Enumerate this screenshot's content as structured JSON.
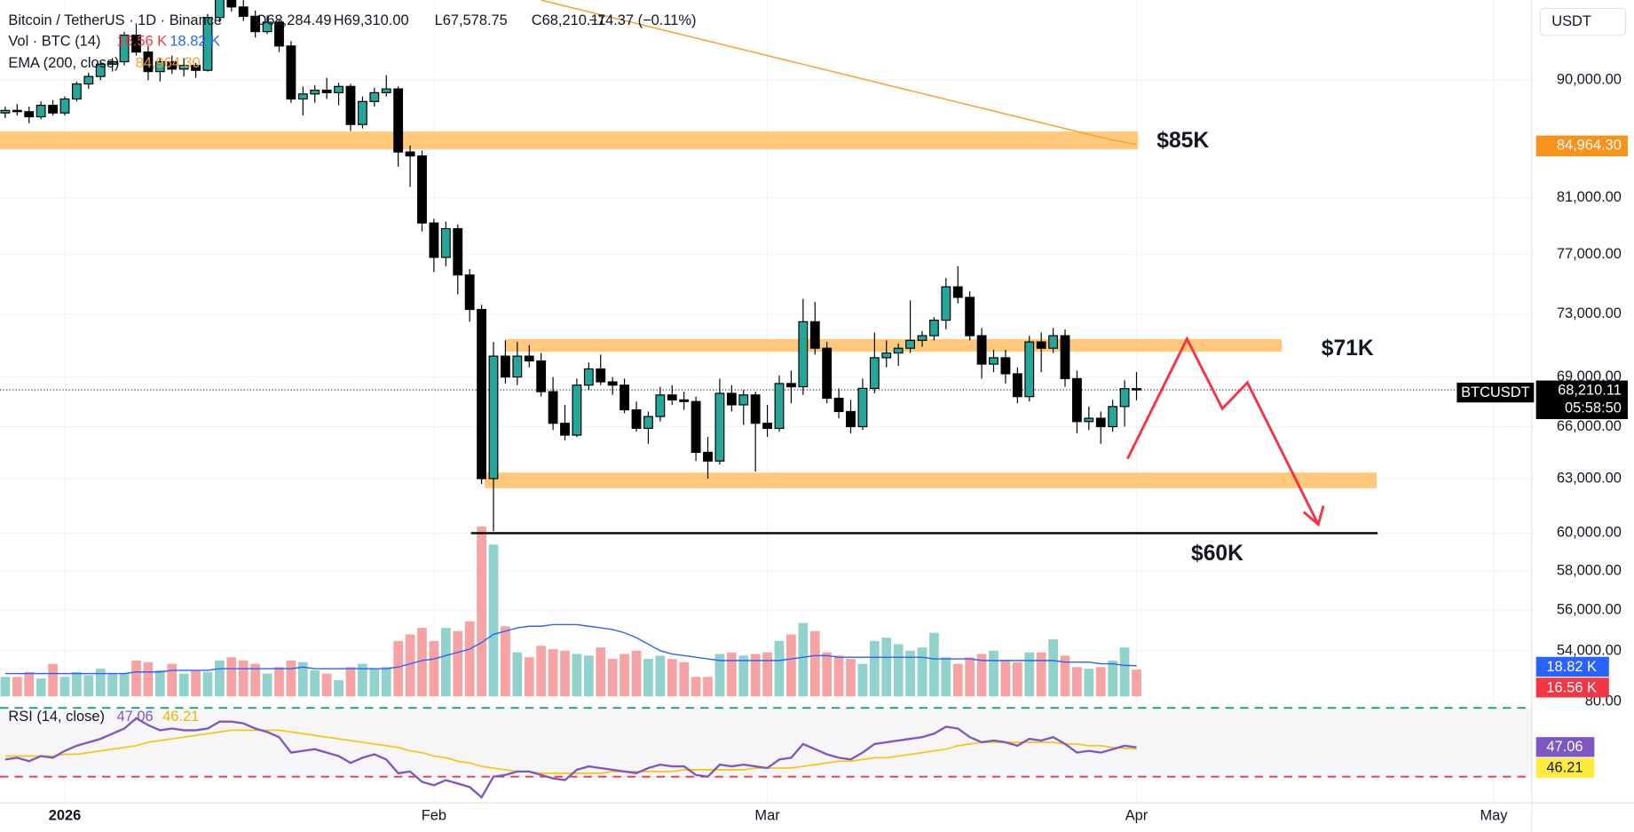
{
  "chart_data": {
    "type": "candlestick",
    "legend": {
      "symbol": "Bitcoin / TetherUS · 1D · Binance",
      "open": "O68,284.49",
      "high": "H69,310.00",
      "low": "L67,578.75",
      "close": "C68,210.11",
      "change": "−74.37 (−0.11%)",
      "volume": "Vol · BTC (14)",
      "volume_last": "16.56 K",
      "volume_ma_last": "18.82 K",
      "ema": "EMA (200, close)",
      "ema_last": "84,964.30",
      "rsi": "RSI (14, close)",
      "rsi_last": "47.06",
      "rsi_ma_last": "46.21"
    },
    "currency": "USDT",
    "ticker": "BTCUSDT",
    "last_price": "68,210.11",
    "countdown": "05:58:50",
    "rsi_axis_label": "80.00",
    "log_scale": true,
    "grid": true,
    "up_color": "#26a69a",
    "down_color": "#000000",
    "volume_up_color": "#92d2cc",
    "volume_down_color": "#f7a3a3",
    "ema_color": "#f7a234",
    "volume_ma_color": "#2962ff",
    "rsi_color": "#7e57c2",
    "rsi_ma_color": "#f5c518",
    "zone_color": "#ffc87a",
    "support_color": "#000000",
    "ylim": [
      51500,
      96700
    ],
    "yticks": [
      {
        "value": 90000,
        "label": "90,000.00"
      },
      {
        "value": 81000,
        "label": "81,000.00"
      },
      {
        "value": 77000,
        "label": "77,000.00"
      },
      {
        "value": 73000,
        "label": "73,000.00"
      },
      {
        "value": 69000,
        "label": "69,000.00"
      },
      {
        "value": 66000,
        "label": "66,000.00"
      },
      {
        "value": 63000,
        "label": "63,000.00"
      },
      {
        "value": 60000,
        "label": "60,000.00"
      },
      {
        "value": 58000,
        "label": "58,000.00"
      },
      {
        "value": 56000,
        "label": "56,000.00"
      },
      {
        "value": 54000,
        "label": "54,000.00"
      }
    ],
    "xlim": [
      -0.44,
      128.2
    ],
    "xticks": [
      {
        "value": 5,
        "label": "2026"
      },
      {
        "value": 36,
        "label": "Feb"
      },
      {
        "value": 64,
        "label": "Mar"
      },
      {
        "value": 95,
        "label": "Apr"
      },
      {
        "value": 125,
        "label": "May"
      }
    ],
    "volume_ylim": [
      0,
      120000
    ],
    "rsi_ylim": [
      14.8,
      72.4
    ],
    "rsi_levels": [
      70,
      30
    ],
    "open": [
      87400,
      87600,
      87500,
      87100,
      88000,
      87400,
      88500,
      89700,
      90300,
      91300,
      91500,
      93700,
      92300,
      90700,
      91500,
      90900,
      91200,
      90800,
      95200,
      96800,
      96100,
      95300,
      94000,
      94800,
      92800,
      88500,
      88900,
      89200,
      89000,
      89500,
      86500,
      88300,
      89000,
      89300,
      84400,
      84100,
      79200,
      76800,
      78800,
      75600,
      73300,
      63000,
      70300,
      69000,
      70300,
      70000,
      68100,
      66200,
      65500,
      68500,
      69500,
      68700,
      68500,
      67000,
      65900,
      66600,
      67900,
      67600,
      67500,
      64500,
      64000,
      68000,
      67300,
      67900,
      66200,
      65900,
      68600,
      68400,
      72500,
      70800,
      67700,
      66900,
      66000,
      68300,
      70200,
      70500,
      70800,
      71300,
      71600,
      72600,
      74800,
      74100,
      71600,
      69800,
      70200,
      69200,
      67800,
      71200,
      70800,
      71600,
      68900,
      66300,
      66500,
      66000,
      67200,
      68284.49
    ],
    "high": [
      87900,
      88100,
      87900,
      88300,
      88400,
      88700,
      89900,
      90600,
      91600,
      91800,
      94000,
      94700,
      92800,
      91800,
      92000,
      91800,
      91400,
      95500,
      97500,
      97800,
      97000,
      95800,
      95400,
      95000,
      93200,
      89500,
      89600,
      90200,
      89800,
      89700,
      88700,
      89400,
      90400,
      89500,
      84900,
      84500,
      79500,
      79300,
      79100,
      76000,
      73600,
      71200,
      71300,
      71200,
      71000,
      70500,
      69000,
      67300,
      68900,
      69900,
      70400,
      69000,
      68900,
      67500,
      66900,
      68400,
      68500,
      68100,
      67800,
      65400,
      68900,
      68500,
      68200,
      68100,
      67300,
      69100,
      69400,
      74000,
      73800,
      71200,
      68300,
      67600,
      68900,
      71800,
      71300,
      71100,
      73900,
      71900,
      72800,
      75400,
      76200,
      74500,
      72100,
      70700,
      70700,
      69600,
      71600,
      71800,
      72100,
      72000,
      69400,
      67200,
      66900,
      67600,
      68800,
      69310
    ],
    "low": [
      87000,
      87200,
      86600,
      86900,
      87200,
      87200,
      88300,
      89300,
      90000,
      90700,
      91200,
      92000,
      90000,
      89900,
      90500,
      90300,
      90200,
      90700,
      94800,
      95700,
      94900,
      93500,
      93800,
      92300,
      88200,
      87200,
      88200,
      88500,
      88000,
      86000,
      86200,
      87900,
      88700,
      83300,
      81800,
      78600,
      75800,
      76200,
      74300,
      72500,
      62700,
      60100,
      68600,
      68500,
      69600,
      67800,
      65800,
      65200,
      65400,
      68200,
      68500,
      67900,
      66800,
      65700,
      65000,
      66300,
      67300,
      67000,
      64000,
      63000,
      63800,
      66900,
      66100,
      63400,
      65400,
      65700,
      67400,
      67900,
      70400,
      67400,
      66500,
      65600,
      65800,
      68000,
      69600,
      69700,
      70500,
      70900,
      71300,
      72000,
      73700,
      71300,
      68900,
      69300,
      68600,
      67400,
      67500,
      69300,
      70500,
      68400,
      65600,
      65800,
      65000,
      65700,
      66000,
      67578.75
    ],
    "close": [
      87600,
      87500,
      87100,
      88000,
      87400,
      88500,
      89700,
      90300,
      91300,
      91500,
      93700,
      92300,
      90700,
      91500,
      90900,
      91200,
      90800,
      95200,
      96800,
      96100,
      95300,
      94000,
      94800,
      92800,
      88500,
      88900,
      89200,
      89000,
      89500,
      86500,
      88300,
      89000,
      89300,
      84400,
      84100,
      79200,
      76800,
      78800,
      75600,
      73300,
      63000,
      70300,
      69000,
      70300,
      70000,
      68100,
      66200,
      65500,
      68500,
      69500,
      68700,
      68500,
      67000,
      65900,
      66600,
      67900,
      67600,
      67500,
      64500,
      64000,
      68000,
      67300,
      67900,
      66200,
      65900,
      68600,
      68400,
      72500,
      70800,
      67700,
      66900,
      66000,
      68300,
      70200,
      70500,
      70800,
      71300,
      71600,
      72600,
      74800,
      74100,
      71600,
      69800,
      70200,
      69200,
      67800,
      71200,
      70800,
      71600,
      68900,
      66300,
      66500,
      66000,
      67200,
      68284.49,
      68210.11
    ],
    "volume": [
      12000,
      12000,
      15000,
      11000,
      20000,
      12000,
      15000,
      13000,
      17000,
      14000,
      14000,
      22000,
      21000,
      16000,
      20000,
      14000,
      16000,
      15000,
      22000,
      24000,
      22000,
      20000,
      14000,
      18000,
      22000,
      21000,
      16000,
      14000,
      10000,
      18000,
      20000,
      17000,
      18000,
      34000,
      38000,
      42000,
      34000,
      42000,
      40000,
      46000,
      104000,
      93000,
      43000,
      27000,
      24000,
      31000,
      29000,
      28000,
      26000,
      25000,
      30000,
      23000,
      26000,
      28000,
      23000,
      25000,
      23000,
      21000,
      12000,
      12000,
      26000,
      27000,
      25000,
      26000,
      27000,
      34000,
      38000,
      45000,
      40000,
      27000,
      25000,
      23000,
      20000,
      34000,
      36000,
      32000,
      28000,
      30000,
      39000,
      24000,
      20000,
      24000,
      26000,
      28000,
      22000,
      21000,
      27000,
      27000,
      35000,
      25000,
      18000,
      17000,
      18000,
      22000,
      30000,
      16560
    ],
    "volume_ma": [
      14000,
      14000,
      14000,
      14000,
      14000,
      14000,
      14000,
      14000,
      14000,
      14000,
      14000,
      15000,
      15000,
      15000,
      16000,
      16000,
      16000,
      16000,
      17000,
      17000,
      17000,
      17000,
      17000,
      17000,
      17000,
      18000,
      17000,
      17000,
      17000,
      17000,
      17000,
      17000,
      17000,
      18000,
      20000,
      22000,
      23000,
      25000,
      27000,
      29000,
      33000,
      38000,
      40000,
      42000,
      43000,
      43000,
      44000,
      44000,
      44000,
      43000,
      42000,
      41000,
      39000,
      36000,
      32000,
      28000,
      26000,
      25000,
      24000,
      23000,
      22000,
      22000,
      22000,
      22000,
      22000,
      22000,
      23000,
      24000,
      25000,
      25000,
      24000,
      24000,
      24000,
      24000,
      24000,
      24000,
      24000,
      24000,
      23000,
      23000,
      23000,
      23000,
      22000,
      22000,
      22000,
      22000,
      22000,
      22000,
      22000,
      21000,
      21000,
      21000,
      20000,
      20000,
      19000,
      18820
    ],
    "ema": [
      null,
      null,
      null,
      null,
      null,
      null,
      null,
      null,
      null,
      null,
      null,
      null,
      null,
      null,
      null,
      null,
      null,
      null,
      null,
      null,
      null,
      null,
      null,
      null,
      null,
      null,
      null,
      null,
      null,
      null,
      null,
      null,
      null,
      null,
      null,
      null,
      null,
      null,
      null,
      null,
      null,
      null,
      null,
      null,
      null,
      96690,
      96438,
      96186,
      95935,
      95685,
      95435,
      95186,
      94938,
      94690,
      94443,
      94197,
      93951,
      93706,
      93461,
      93217,
      92974,
      92731,
      92489,
      92248,
      92007,
      91767,
      91528,
      91289,
      91051,
      90813,
      90576,
      90340,
      90104,
      89869,
      89634,
      89400,
      89167,
      88934,
      88702,
      88470,
      88239,
      88009,
      87779,
      87550,
      87322,
      87094,
      86867,
      86640,
      86414,
      86188,
      85963,
      85739,
      85515,
      85300,
      85130,
      84964.3
    ],
    "rsi": [
      40,
      41,
      39,
      42,
      41,
      45,
      48,
      50,
      52,
      55,
      58,
      64,
      60,
      57,
      58,
      57,
      57,
      58,
      62,
      62,
      61,
      58,
      56,
      53,
      44,
      45,
      46,
      44,
      42,
      38,
      41,
      43,
      40,
      32,
      33,
      27,
      25,
      28,
      26,
      24,
      18,
      30,
      31,
      33,
      33,
      31,
      29,
      28,
      34,
      36,
      35,
      34,
      33,
      32,
      35,
      37,
      36,
      36,
      31,
      30,
      37,
      36,
      37,
      36,
      35,
      40,
      41,
      49,
      46,
      43,
      41,
      40,
      44,
      49,
      50,
      51,
      52,
      53,
      55,
      59,
      58,
      53,
      50,
      51,
      50,
      48,
      52,
      51,
      53,
      49,
      44,
      45,
      44,
      46,
      48,
      47.06
    ],
    "rsi_ma": [
      42,
      42,
      42,
      42,
      42,
      43,
      43,
      44,
      45,
      46,
      47,
      48,
      50,
      51,
      52,
      53,
      54,
      55,
      56,
      57,
      57,
      57,
      57,
      57,
      56,
      55,
      54,
      53,
      52,
      51,
      50,
      49,
      48,
      47,
      45,
      44,
      42,
      41,
      39,
      38,
      36,
      35,
      34,
      33,
      33,
      32,
      32,
      32,
      32,
      32,
      32,
      33,
      33,
      33,
      33,
      33,
      33,
      34,
      34,
      34,
      34,
      34,
      34,
      35,
      35,
      35,
      35,
      36,
      37,
      38,
      39,
      39,
      40,
      41,
      41,
      42,
      43,
      44,
      45,
      46,
      48,
      49,
      50,
      50,
      50,
      50,
      50,
      50,
      50,
      49,
      49,
      48,
      48,
      47,
      46.5,
      46.21
    ],
    "zones": [
      {
        "label": "$85K",
        "low": 84600,
        "high": 85960
      },
      {
        "label": "$71K",
        "low": 70580,
        "high": 71380
      },
      {
        "low": 62460,
        "high": 63340
      }
    ],
    "support": {
      "label": "$60K",
      "value": 60000
    }
  }
}
